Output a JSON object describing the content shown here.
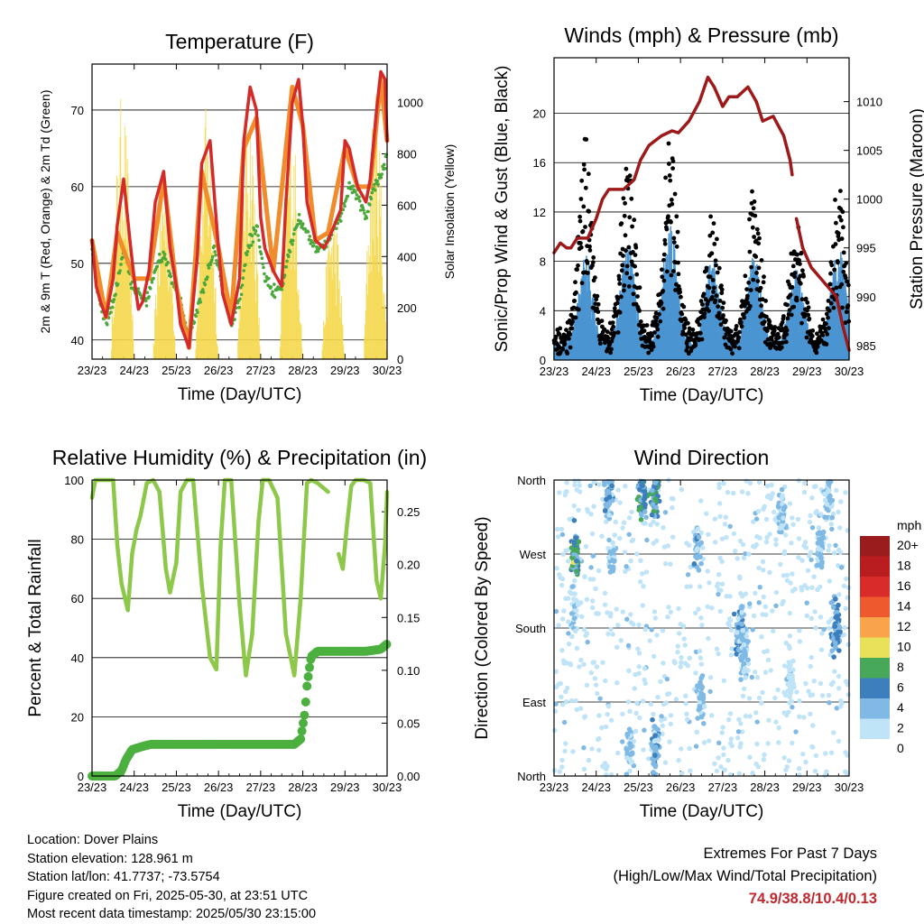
{
  "chart_data": [
    {
      "type": "line",
      "title": "Temperature (F)",
      "xlabel": "Time (Day/UTC)",
      "ylabel": "2m & 9m T (Red, Orange) & 2m Td (Green)",
      "y2label": "Solar Insolation (Yellow)",
      "xticks": [
        "23/23",
        "24/23",
        "25/23",
        "26/23",
        "27/23",
        "28/23",
        "29/23",
        "30/23"
      ],
      "ylim": [
        37.5,
        76
      ],
      "yticks": [
        40,
        50,
        60,
        70
      ],
      "y2lim": [
        0,
        1150
      ],
      "y2ticks": [
        0,
        200,
        400,
        600,
        800,
        1000
      ],
      "grid": true,
      "series": [
        {
          "name": "2m T",
          "color": "#d42a2a",
          "x": [
            0,
            0.1,
            0.2,
            0.33,
            0.5,
            0.6,
            0.75,
            0.9,
            1.0,
            1.1,
            1.2,
            1.35,
            1.5,
            1.7,
            1.85,
            2.0,
            2.1,
            2.3,
            2.5,
            2.6,
            2.8,
            3.0,
            3.1,
            3.3,
            3.5,
            3.6,
            3.75,
            3.9,
            4.0,
            4.1,
            4.3,
            4.5,
            4.6,
            4.75,
            4.9,
            5.0,
            5.1,
            5.3,
            5.5,
            5.6,
            5.75,
            5.9,
            6.0,
            6.1,
            6.3,
            6.5,
            6.6,
            6.75,
            6.85,
            6.95,
            7.0
          ],
          "y": [
            53,
            47,
            45,
            43,
            48,
            55,
            61,
            53,
            48,
            44,
            45,
            49,
            58,
            62,
            52,
            47,
            42,
            39,
            51,
            63,
            66,
            52,
            46,
            42,
            48,
            66,
            73,
            70,
            56,
            52,
            49,
            47,
            58,
            71,
            74,
            68,
            58,
            53,
            52,
            53,
            55,
            57,
            66,
            65,
            60,
            58,
            61,
            70,
            75,
            74,
            66
          ]
        },
        {
          "name": "9m T",
          "color": "#f08c2c",
          "x": [
            0,
            0.33,
            0.6,
            1.0,
            1.35,
            1.7,
            2.0,
            2.3,
            2.6,
            3.0,
            3.3,
            3.6,
            3.9,
            4.3,
            4.75,
            5.0,
            5.3,
            5.6,
            6.0,
            6.3,
            6.6,
            6.85,
            7.0
          ],
          "y": [
            53,
            43,
            54,
            48,
            48,
            61,
            47,
            39,
            62,
            52,
            43,
            65,
            69,
            49,
            73,
            68,
            53,
            54,
            65,
            60,
            60,
            74,
            66
          ]
        },
        {
          "name": "2m Td",
          "color": "#4aa83a",
          "x": [
            0,
            0.15,
            0.35,
            0.55,
            0.75,
            0.9,
            1.1,
            1.3,
            1.5,
            1.7,
            1.9,
            2.1,
            2.3,
            2.5,
            2.7,
            2.9,
            3.1,
            3.3,
            3.5,
            3.7,
            3.9,
            4.1,
            4.3,
            4.5,
            4.7,
            4.9,
            5.1,
            5.3,
            5.5,
            5.7,
            5.9,
            6.1,
            6.3,
            6.5,
            6.7,
            6.9,
            7.0
          ],
          "y": [
            52,
            46,
            42,
            46,
            52,
            48,
            46,
            45,
            49,
            51,
            48,
            45,
            40,
            44,
            48,
            52,
            47,
            42,
            45,
            52,
            55,
            48,
            46,
            47,
            52,
            56,
            54,
            52,
            52,
            54,
            56,
            60,
            59,
            56,
            60,
            62,
            64
          ]
        }
      ],
      "insolation": {
        "name": "Solar Insolation",
        "color": "#f5d84a",
        "days": [
          {
            "c": 0.72,
            "p": 1050
          },
          {
            "c": 1.72,
            "p": 780
          },
          {
            "c": 2.72,
            "p": 1000
          },
          {
            "c": 3.72,
            "p": 1050
          },
          {
            "c": 4.72,
            "p": 1000
          },
          {
            "c": 5.72,
            "p": 620
          },
          {
            "c": 6.72,
            "p": 1050
          }
        ]
      }
    },
    {
      "type": "scatter",
      "title": "Winds (mph) & Pressure (mb)",
      "xlabel": "Time (Day/UTC)",
      "ylabel": "Sonic/Prop Wind & Gust (Blue, Black)",
      "y2label": "Station Pressure (Maroon)",
      "xticks": [
        "23/23",
        "24/23",
        "25/23",
        "26/23",
        "27/23",
        "28/23",
        "29/23",
        "30/23"
      ],
      "ylim": [
        0,
        24.5
      ],
      "yticks": [
        0,
        4,
        8,
        12,
        16,
        20
      ],
      "y2lim": [
        983.5,
        1014.5
      ],
      "y2ticks": [
        985,
        990,
        995,
        1000,
        1005,
        1010
      ],
      "grid": true,
      "wind_peaks": [
        {
          "c": 0.75,
          "w": 6,
          "g": 16
        },
        {
          "c": 1.75,
          "w": 7,
          "g": 14
        },
        {
          "c": 2.75,
          "w": 8,
          "g": 16
        },
        {
          "c": 3.75,
          "w": 6,
          "g": 10
        },
        {
          "c": 4.75,
          "w": 6,
          "g": 12
        },
        {
          "c": 5.75,
          "w": 5,
          "g": 9
        },
        {
          "c": 6.75,
          "w": 7,
          "g": 12
        }
      ],
      "pressure": {
        "name": "Station Pressure",
        "color": "#9e1a1a",
        "segments": [
          {
            "x": [
              0.0,
              0.15,
              0.3,
              0.4,
              0.55,
              0.8,
              1.0,
              1.15,
              1.3,
              1.45,
              1.65,
              1.9,
              2.05,
              2.25,
              2.55,
              2.8,
              2.95,
              3.2,
              3.45,
              3.65,
              3.8,
              4.0,
              4.15,
              4.35,
              4.6,
              4.8,
              4.95,
              5.2,
              5.45,
              5.6,
              5.65
            ],
            "y": [
              994.5,
              995.5,
              995,
              995,
              996,
              996,
              998,
              1000,
              1001,
              1001,
              1001,
              1002,
              1004,
              1005.5,
              1006.5,
              1007,
              1006.8,
              1008,
              1010,
              1012.5,
              1011.5,
              1009.5,
              1010.5,
              1010.5,
              1011.5,
              1010,
              1008,
              1008.5,
              1006.5,
              1004,
              1002.5
            ]
          },
          {
            "x": [
              5.75,
              5.9,
              6.1,
              6.3,
              6.5,
              6.7,
              6.85,
              7.0
            ],
            "y": [
              998,
              995,
              993,
              992,
              991,
              990,
              987,
              984.5
            ]
          }
        ]
      },
      "series": [
        {
          "name": "Sonic/Prop Wind",
          "color": "#4b95d2"
        },
        {
          "name": "Gust",
          "color": "#000000"
        }
      ]
    },
    {
      "type": "line",
      "title": "Relative Humidity (%) & Precipitation (in)",
      "xlabel": "Time (Day/UTC)",
      "ylabel": "Percent & Total Rainfall",
      "xticks": [
        "23/23",
        "24/23",
        "25/23",
        "26/23",
        "27/23",
        "28/23",
        "29/23",
        "30/23"
      ],
      "ylim": [
        0,
        100
      ],
      "yticks": [
        0,
        20,
        40,
        60,
        80,
        100
      ],
      "y2lim": [
        0,
        0.28
      ],
      "y2ticks": [
        "0.00",
        "0.05",
        "0.10",
        "0.15",
        "0.20",
        "0.25"
      ],
      "grid": true,
      "series": [
        {
          "name": "Relative Humidity",
          "color": "#8ec84a",
          "segments": [
            {
              "x": [
                0,
                0.08,
                0.15,
                0.5,
                0.6,
                0.7,
                0.85,
                0.95,
                1.05,
                1.15,
                1.3,
                1.45,
                1.6,
                1.75,
                1.85,
                2.0,
                2.1,
                2.25,
                2.4,
                2.6,
                2.8,
                2.95,
                3.05,
                3.15,
                3.3,
                3.5,
                3.65,
                3.8,
                3.95,
                4.05,
                4.2,
                4.4,
                4.6,
                4.8,
                4.95,
                5.1,
                5.2,
                5.35,
                5.6
              ],
              "y": [
                94,
                100,
                100,
                100,
                78,
                65,
                56,
                75,
                83,
                88,
                99,
                100,
                96,
                70,
                62,
                72,
                96,
                100,
                100,
                65,
                40,
                36,
                78,
                100,
                100,
                58,
                34,
                48,
                86,
                100,
                100,
                94,
                48,
                34,
                60,
                99,
                100,
                99,
                96
              ]
            },
            {
              "x": [
                5.85,
                5.95,
                6.05,
                6.15,
                6.25,
                6.45,
                6.6,
                6.75,
                6.85,
                6.95,
                7.0
              ],
              "y": [
                75,
                70,
                85,
                98,
                100,
                100,
                99,
                66,
                60,
                78,
                96
              ]
            }
          ]
        },
        {
          "name": "Total Rainfall",
          "color": "#4cb03f",
          "x": [
            0,
            0.15,
            0.3,
            0.5,
            0.55,
            0.7,
            0.8,
            0.95,
            1.2,
            1.4,
            1.7,
            2.0,
            2.5,
            3.0,
            3.5,
            4.0,
            4.5,
            4.8,
            4.95,
            5.05,
            5.1,
            5.15,
            5.2,
            5.35,
            5.6,
            6.0,
            6.5,
            6.85,
            7.0
          ],
          "y": [
            0,
            0,
            0,
            0,
            0,
            0.005,
            0.015,
            0.025,
            0.028,
            0.03,
            0.03,
            0.03,
            0.03,
            0.03,
            0.03,
            0.03,
            0.03,
            0.03,
            0.035,
            0.06,
            0.085,
            0.1,
            0.113,
            0.118,
            0.118,
            0.118,
            0.118,
            0.12,
            0.125
          ]
        }
      ]
    },
    {
      "type": "scatter",
      "title": "Wind Direction",
      "xlabel": "Time (Day/UTC)",
      "ylabel": "Direction (Colored By Speed)",
      "xticks": [
        "23/23",
        "24/23",
        "25/23",
        "26/23",
        "27/23",
        "28/23",
        "29/23",
        "30/23"
      ],
      "yticks": [
        "North",
        "East",
        "South",
        "West",
        "North"
      ],
      "ylim": [
        0,
        360
      ],
      "grid": true,
      "colorbar": {
        "title": "mph",
        "labels": [
          "20+",
          "18",
          "16",
          "14",
          "12",
          "10",
          "8",
          "6",
          "4",
          "2",
          "0"
        ],
        "colors": [
          "#9a1c1c",
          "#b91d20",
          "#da2b2b",
          "#ee5a2e",
          "#f9a44a",
          "#e9e15a",
          "#47a85a",
          "#3d7fbd",
          "#7fb9e4",
          "#bfe3f7"
        ]
      },
      "clusters": [
        {
          "c": 0.5,
          "d": 270,
          "sp": 7,
          "n": 70
        },
        {
          "c": 0.5,
          "d": 200,
          "sp": 2,
          "n": 30
        },
        {
          "c": 1.3,
          "d": 345,
          "sp": 4,
          "n": 60
        },
        {
          "c": 1.4,
          "d": 265,
          "sp": 3,
          "n": 30
        },
        {
          "c": 2.1,
          "d": 340,
          "sp": 6,
          "n": 50
        },
        {
          "c": 2.4,
          "d": 340,
          "sp": 7,
          "n": 60
        },
        {
          "c": 2.4,
          "d": 30,
          "sp": 4,
          "n": 50
        },
        {
          "c": 1.8,
          "d": 35,
          "sp": 3,
          "n": 40
        },
        {
          "c": 3.4,
          "d": 280,
          "sp": 4,
          "n": 40
        },
        {
          "c": 3.5,
          "d": 90,
          "sp": 3,
          "n": 40
        },
        {
          "c": 4.4,
          "d": 170,
          "sp": 4,
          "n": 55
        },
        {
          "c": 4.5,
          "d": 150,
          "sp": 3,
          "n": 50
        },
        {
          "c": 5.4,
          "d": 320,
          "sp": 3,
          "n": 40
        },
        {
          "c": 5.6,
          "d": 120,
          "sp": 2,
          "n": 30
        },
        {
          "c": 6.3,
          "d": 280,
          "sp": 3,
          "n": 50
        },
        {
          "c": 6.7,
          "d": 180,
          "sp": 5,
          "n": 60
        },
        {
          "c": 6.5,
          "d": 340,
          "sp": 3,
          "n": 40
        }
      ]
    }
  ],
  "info": {
    "location": "Location: Dover Plains",
    "elevation": "Station elevation: 128.961 m",
    "latlon": "Station lat/lon: 41.7737; -73.5754",
    "created": "Figure created on Fri, 2025-05-30, at 23:51 UTC",
    "recent": "Most recent data timestamp: 2025/05/30 23:15:00"
  },
  "extremes": {
    "title": "Extremes For Past 7 Days",
    "subtitle": "(High/Low/Max Wind/Total Precipitation)",
    "values": "74.9/38.8/10.4/0.13"
  }
}
